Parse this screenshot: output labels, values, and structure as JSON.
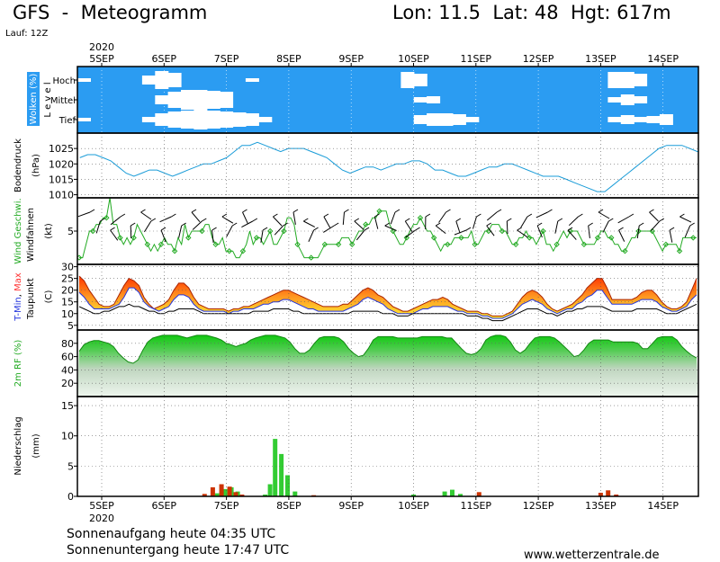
{
  "header": {
    "title": "GFS  -  Meteogramm",
    "location": "Lon: 11.5  Lat: 48  Hgt: 617m",
    "run": "Lauf: 12Z"
  },
  "footer": {
    "sunrise": "Sonnenaufgang heute 04:35 UTC",
    "sunset": "Sonnenuntergang heute 17:47 UTC",
    "website": "www.wetterzentrale.de"
  },
  "time_axis": {
    "year": "2020",
    "days": [
      "5SEP",
      "6SEP",
      "7SEP",
      "8SEP",
      "9SEP",
      "10SEP",
      "11SEP",
      "12SEP",
      "13SEP",
      "14SEP"
    ]
  },
  "colors": {
    "cloud_sky": "#2b9cf2",
    "pressure_line": "#1a9cd8",
    "wind_speed": "#22aa22",
    "tmax": "#ff3333",
    "tmin": "#2233dd",
    "precip_rain": "#33cc33",
    "precip_conv": "#cc3300"
  },
  "chart_data": [
    {
      "type": "heatmap",
      "title": "Wolken (%)",
      "ylabel": "L e v e l",
      "levels": [
        "Hoch",
        "Mittel",
        "Tief"
      ],
      "hoch": [
        10,
        0,
        0,
        0,
        0,
        40,
        90,
        70,
        0,
        0,
        0,
        0,
        0,
        10,
        0,
        0,
        0,
        0,
        0,
        0,
        0,
        0,
        0,
        0,
        0,
        80,
        60,
        0,
        0,
        0,
        0,
        0,
        0,
        0,
        0,
        0,
        0,
        0,
        0,
        0,
        0,
        80,
        80,
        60,
        0,
        0,
        0,
        0
      ],
      "mittel": [
        0,
        0,
        0,
        0,
        0,
        0,
        40,
        80,
        100,
        100,
        90,
        80,
        0,
        0,
        0,
        0,
        0,
        0,
        0,
        0,
        0,
        0,
        0,
        0,
        0,
        0,
        20,
        30,
        0,
        0,
        0,
        0,
        0,
        0,
        0,
        0,
        0,
        0,
        0,
        0,
        0,
        20,
        50,
        30,
        0,
        0,
        0,
        0
      ],
      "tief": [
        10,
        0,
        0,
        0,
        0,
        20,
        60,
        80,
        90,
        100,
        90,
        80,
        70,
        60,
        20,
        0,
        0,
        0,
        0,
        0,
        0,
        0,
        0,
        0,
        0,
        0,
        40,
        60,
        60,
        50,
        20,
        0,
        0,
        0,
        0,
        0,
        0,
        0,
        0,
        0,
        0,
        20,
        40,
        20,
        30,
        50,
        0,
        0
      ]
    },
    {
      "type": "line",
      "ylabel": "Bodendruck (hPa)",
      "yticks": [
        "1025",
        "1020",
        "1015",
        "1010"
      ],
      "ylim": [
        1009,
        1030
      ],
      "values": [
        1022,
        1023,
        1023,
        1022,
        1021,
        1019,
        1017,
        1016,
        1017,
        1018,
        1018,
        1017,
        1016,
        1017,
        1018,
        1019,
        1020,
        1020,
        1021,
        1022,
        1024,
        1026,
        1026,
        1027,
        1026,
        1025,
        1024,
        1025,
        1025,
        1025,
        1024,
        1023,
        1022,
        1020,
        1018,
        1017,
        1018,
        1019,
        1019,
        1018,
        1019,
        1020,
        1020,
        1021,
        1021,
        1020,
        1018,
        1018,
        1017,
        1016,
        1016,
        1017,
        1018,
        1019,
        1019,
        1020,
        1020,
        1019,
        1018,
        1017,
        1016,
        1016,
        1016,
        1015,
        1014,
        1013,
        1012,
        1011,
        1011,
        1013,
        1015,
        1017,
        1019,
        1021,
        1023,
        1025,
        1026,
        1026,
        1026,
        1025,
        1024,
        1024,
        1022
      ],
      "x_start_day": 0,
      "x_end_day": 10
    },
    {
      "type": "line",
      "ylabel": "Wind Geschwi. (kt)",
      "ylabel2": "Windfahnen",
      "yticks": [
        "5"
      ],
      "ylim": [
        0,
        10
      ],
      "values": [
        1,
        1,
        3,
        5,
        5,
        6,
        6,
        7,
        7,
        10,
        6,
        6,
        4,
        3,
        4,
        3,
        4,
        6,
        5,
        4,
        3,
        2,
        3,
        2,
        3,
        4,
        3,
        3,
        2,
        4,
        3,
        6,
        4,
        5,
        5,
        5,
        5,
        6,
        6,
        4,
        3,
        3,
        4,
        2,
        2,
        2,
        1,
        1,
        2,
        3,
        5,
        3,
        4,
        4,
        3,
        4,
        5,
        3,
        3,
        4,
        5,
        7,
        7,
        6,
        3,
        2,
        1,
        1,
        1,
        1,
        1,
        2,
        3,
        3,
        3,
        3,
        3,
        4,
        4,
        4,
        3,
        4,
        5,
        5,
        6,
        6,
        7,
        7,
        8,
        8,
        8,
        6,
        5,
        4,
        3,
        3,
        4,
        5,
        6,
        6,
        7,
        6,
        5,
        5,
        4,
        3,
        2,
        3,
        3,
        3,
        4,
        4,
        4,
        4,
        4,
        5,
        3,
        3,
        4,
        5,
        5,
        6,
        6,
        6,
        5,
        5,
        4,
        3,
        3,
        4,
        4,
        5,
        4,
        4,
        3,
        4,
        5,
        3,
        3,
        2,
        3,
        4,
        5,
        4,
        5,
        5,
        5,
        4,
        3,
        3,
        3,
        3,
        4,
        5,
        5,
        4,
        4,
        3,
        3,
        2,
        2,
        3,
        4,
        4,
        5,
        5,
        5,
        5,
        5,
        4,
        3,
        2,
        3,
        3,
        3,
        3,
        2,
        4,
        4,
        4,
        4,
        4
      ]
    },
    {
      "type": "area",
      "ylabel": "T-Min, Max (C)",
      "ylabel2": "Taupunkt",
      "yticks": [
        "30",
        "25",
        "20",
        "15",
        "10",
        "5"
      ],
      "ylim": [
        3,
        31
      ],
      "tmax": [
        26,
        24,
        20,
        17,
        14,
        13,
        13,
        14,
        18,
        22,
        25,
        24,
        22,
        17,
        14,
        12,
        13,
        14,
        16,
        20,
        23,
        23,
        21,
        17,
        14,
        13,
        12,
        12,
        12,
        12,
        11,
        12,
        12,
        13,
        13,
        14,
        15,
        16,
        17,
        18,
        19,
        20,
        20,
        19,
        18,
        17,
        16,
        15,
        14,
        13,
        13,
        13,
        13,
        14,
        14,
        16,
        18,
        20,
        21,
        20,
        18,
        17,
        15,
        13,
        12,
        11,
        11,
        12,
        13,
        14,
        15,
        16,
        16,
        17,
        16,
        14,
        13,
        12,
        11,
        11,
        11,
        10,
        10,
        9,
        9,
        9,
        10,
        11,
        14,
        17,
        19,
        20,
        19,
        17,
        14,
        12,
        11,
        12,
        13,
        14,
        16,
        18,
        21,
        23,
        25,
        25,
        21,
        16,
        16,
        16,
        16,
        16,
        17,
        19,
        20,
        20,
        18,
        15,
        13,
        12,
        12,
        13,
        15,
        20,
        25
      ],
      "tmin": [
        19,
        17,
        14,
        12,
        12,
        12,
        12,
        13,
        14,
        17,
        21,
        21,
        19,
        15,
        13,
        12,
        11,
        12,
        13,
        16,
        18,
        18,
        17,
        14,
        12,
        11,
        11,
        11,
        11,
        11,
        10,
        11,
        11,
        12,
        12,
        12,
        13,
        14,
        14,
        15,
        15,
        16,
        16,
        15,
        14,
        13,
        12,
        12,
        11,
        11,
        11,
        11,
        11,
        11,
        12,
        13,
        14,
        16,
        17,
        16,
        15,
        14,
        12,
        11,
        10,
        10,
        10,
        10,
        11,
        12,
        12,
        13,
        13,
        13,
        13,
        12,
        11,
        11,
        10,
        10,
        10,
        9,
        9,
        8,
        8,
        8,
        9,
        10,
        12,
        14,
        15,
        16,
        15,
        14,
        12,
        11,
        10,
        11,
        12,
        12,
        14,
        15,
        17,
        18,
        20,
        20,
        17,
        14,
        14,
        14,
        14,
        14,
        15,
        16,
        16,
        16,
        15,
        13,
        12,
        11,
        11,
        12,
        13,
        16,
        18
      ],
      "dewpoint": [
        13,
        12,
        11,
        10,
        10,
        11,
        11,
        12,
        13,
        13,
        14,
        13,
        13,
        12,
        11,
        11,
        10,
        10,
        11,
        11,
        12,
        12,
        12,
        12,
        11,
        10,
        10,
        10,
        10,
        10,
        10,
        10,
        10,
        10,
        10,
        11,
        11,
        11,
        11,
        12,
        12,
        12,
        12,
        11,
        11,
        10,
        10,
        10,
        10,
        10,
        10,
        10,
        10,
        10,
        10,
        11,
        11,
        11,
        11,
        11,
        11,
        10,
        10,
        10,
        9,
        9,
        9,
        10,
        10,
        10,
        10,
        10,
        10,
        10,
        10,
        10,
        10,
        10,
        9,
        9,
        9,
        8,
        8,
        7,
        7,
        7,
        8,
        9,
        10,
        11,
        12,
        12,
        12,
        11,
        10,
        10,
        9,
        10,
        11,
        11,
        12,
        12,
        13,
        13,
        13,
        13,
        12,
        11,
        11,
        11,
        11,
        11,
        12,
        12,
        12,
        12,
        12,
        11,
        10,
        10,
        10,
        11,
        12,
        13,
        14
      ]
    },
    {
      "type": "area",
      "ylabel": "2m RF (%)",
      "yticks": [
        "80",
        "60",
        "40",
        "20"
      ],
      "ylim": [
        0,
        100
      ],
      "values": [
        68,
        78,
        82,
        84,
        84,
        82,
        80,
        75,
        65,
        58,
        52,
        50,
        55,
        70,
        82,
        88,
        90,
        92,
        92,
        92,
        92,
        90,
        88,
        90,
        92,
        92,
        92,
        90,
        88,
        85,
        80,
        78,
        75,
        78,
        80,
        85,
        88,
        90,
        92,
        92,
        92,
        90,
        88,
        82,
        72,
        65,
        65,
        70,
        80,
        88,
        90,
        90,
        90,
        88,
        82,
        72,
        65,
        60,
        62,
        72,
        85,
        90,
        90,
        90,
        90,
        88,
        88,
        88,
        88,
        88,
        90,
        90,
        90,
        90,
        90,
        88,
        88,
        80,
        72,
        65,
        63,
        65,
        72,
        85,
        90,
        92,
        92,
        90,
        82,
        70,
        65,
        70,
        80,
        88,
        90,
        90,
        90,
        88,
        82,
        75,
        68,
        60,
        62,
        70,
        80,
        85,
        85,
        85,
        85,
        82,
        82,
        82,
        82,
        82,
        80,
        72,
        72,
        80,
        88,
        90,
        90,
        90,
        85,
        75,
        68,
        62,
        58
      ]
    },
    {
      "type": "bar",
      "ylabel": "Niederschlag (mm)",
      "yticks": [
        "15",
        "10",
        "5",
        "0"
      ],
      "ylim": [
        0,
        16.5
      ],
      "series": [
        {
          "name": "",
          "color": "precip_rain",
          "points": [
            [
              1.85,
              0.5
            ],
            [
              1.98,
              1.2
            ],
            [
              2.08,
              1.5
            ],
            [
              2.18,
              0.8
            ],
            [
              2.62,
              0.3
            ],
            [
              2.7,
              2.0
            ],
            [
              2.78,
              9.5
            ],
            [
              2.88,
              7.0
            ],
            [
              2.98,
              3.5
            ],
            [
              3.1,
              0.8
            ],
            [
              5.0,
              0.3
            ],
            [
              5.5,
              0.8
            ],
            [
              5.62,
              1.1
            ],
            [
              5.75,
              0.4
            ]
          ]
        },
        {
          "name": "",
          "color": "precip_conv",
          "points": [
            [
              1.65,
              0.4
            ],
            [
              1.78,
              1.5
            ],
            [
              1.92,
              2.0
            ],
            [
              2.05,
              1.6
            ],
            [
              2.15,
              0.7
            ],
            [
              2.25,
              0.3
            ],
            [
              3.4,
              0.2
            ],
            [
              6.05,
              0.7
            ],
            [
              8.0,
              0.6
            ],
            [
              8.12,
              1.0
            ],
            [
              8.25,
              0.3
            ]
          ]
        }
      ]
    }
  ]
}
